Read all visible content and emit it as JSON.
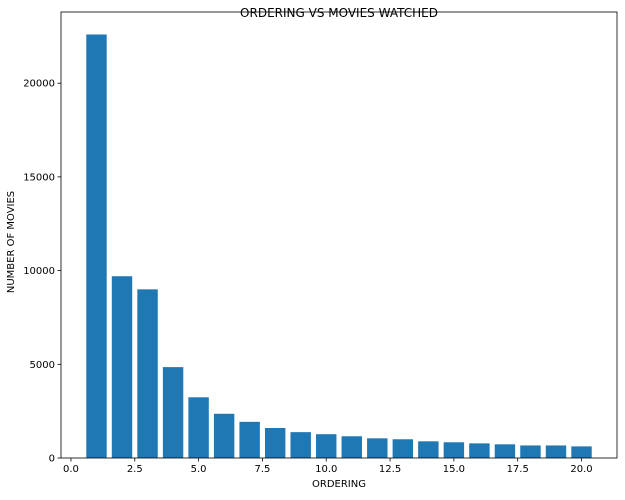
{
  "chart_data": {
    "type": "bar",
    "title": "ORDERING VS MOVIES WATCHED",
    "xlabel": "ORDERING",
    "ylabel": "NUMBER OF MOVIES",
    "x": [
      1,
      2,
      3,
      4,
      5,
      6,
      7,
      8,
      9,
      10,
      11,
      12,
      13,
      14,
      15,
      16,
      17,
      18,
      19,
      20
    ],
    "values": [
      22600,
      9700,
      9000,
      4850,
      3240,
      2360,
      1930,
      1600,
      1380,
      1270,
      1160,
      1050,
      1000,
      890,
      840,
      780,
      730,
      670,
      670,
      620
    ],
    "xlim": [
      -0.39,
      21.39
    ],
    "ylim": [
      0,
      23800
    ],
    "xticks": [
      0.0,
      2.5,
      5.0,
      7.5,
      10.0,
      12.5,
      15.0,
      17.5,
      20.0
    ],
    "xtick_labels": [
      "0.0",
      "2.5",
      "5.0",
      "7.5",
      "10.0",
      "12.5",
      "15.0",
      "17.5",
      "20.0"
    ],
    "yticks": [
      0,
      5000,
      10000,
      15000,
      20000
    ],
    "ytick_labels": [
      "0",
      "5000",
      "10000",
      "15000",
      "20000"
    ],
    "grid": false,
    "bar_color": "#1f77b4"
  }
}
